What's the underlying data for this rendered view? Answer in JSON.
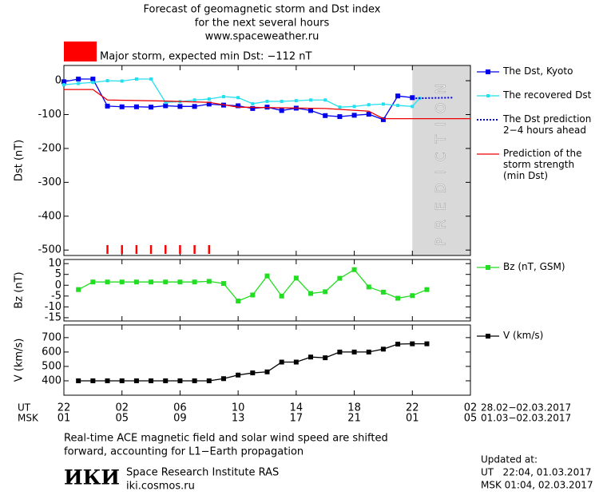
{
  "title_lines": [
    "Forecast of geomagnetic storm and Dst index",
    "for the next several hours",
    "www.spaceweather.ru"
  ],
  "alert": "Major storm, expected min Dst: −112 nT",
  "x_axis": {
    "xlim": [
      0,
      28
    ],
    "xticks": [
      {
        "value": 0,
        "label": "22"
      },
      {
        "value": 4,
        "label": "02"
      },
      {
        "value": 8,
        "label": "06"
      },
      {
        "value": 12,
        "label": "10"
      },
      {
        "value": 16,
        "label": "14"
      },
      {
        "value": 20,
        "label": "18"
      },
      {
        "value": 24,
        "label": "22"
      },
      {
        "value": 28,
        "label": "02"
      }
    ],
    "msk_labels": [
      "01",
      "05",
      "09",
      "13",
      "17",
      "21",
      "01",
      "05"
    ],
    "ut_label": "UT",
    "msk_label": "MSK",
    "ut_dates": "28.02−02.03.2017",
    "msk_dates": "01.03−02.03.2017"
  },
  "chart_data": [
    {
      "type": "line",
      "ylabel": "Dst (nT)",
      "ylim": [
        -516,
        45
      ],
      "yticks": [
        0,
        -100,
        -200,
        -300,
        -400,
        -500
      ],
      "prediction_region": {
        "x": [
          24,
          28
        ],
        "label": "PREDICTION",
        "color": "#d9d9d9"
      },
      "alert_hours": [
        3,
        4,
        5,
        6,
        7,
        8,
        9,
        10
      ],
      "alert_color": "#ff0000",
      "series": [
        {
          "name": "The Dst, Kyoto",
          "color": "#0000ee",
          "marker": "square",
          "x": [
            0,
            1,
            2,
            3,
            4,
            5,
            6,
            7,
            8,
            9,
            10,
            11,
            12,
            13,
            14,
            15,
            16,
            17,
            18,
            19,
            20,
            21,
            22,
            23,
            24
          ],
          "values": [
            -3,
            5,
            5,
            -75,
            -77,
            -77,
            -78,
            -74,
            -76,
            -76,
            -69,
            -72,
            -74,
            -82,
            -78,
            -88,
            -81,
            -88,
            -103,
            -106,
            -102,
            -99,
            -115,
            -45,
            -50
          ]
        },
        {
          "name": "The recovered Dst",
          "color": "#22e0f0",
          "marker": "small-square",
          "x": [
            0,
            1,
            2,
            3,
            4,
            5,
            6,
            7,
            8,
            9,
            10,
            11,
            12,
            13,
            14,
            15,
            16,
            17,
            18,
            19,
            20,
            21,
            22,
            23,
            24,
            24.5
          ],
          "values": [
            -12,
            -8,
            -5,
            0,
            -1,
            5,
            5,
            -64,
            -62,
            -57,
            -54,
            -47,
            -50,
            -68,
            -61,
            -61,
            -59,
            -57,
            -57,
            -78,
            -76,
            -71,
            -69,
            -73,
            -76,
            -52
          ]
        },
        {
          "name": "The Dst prediction\n2−4 hours ahead",
          "color": "#0000ee",
          "dash": true,
          "x": [
            24,
            26.75
          ],
          "values": [
            -52,
            -50
          ]
        },
        {
          "name": "Prediction of the\nstorm strength\n(min Dst)",
          "color": "#ee0000",
          "x": [
            0,
            2,
            3,
            7,
            10,
            12,
            18,
            21,
            22,
            28
          ],
          "values": [
            -26,
            -26,
            -57,
            -60,
            -64,
            -78,
            -82,
            -90,
            -112,
            -112
          ]
        }
      ]
    },
    {
      "type": "line",
      "ylabel": "Bz (nT)",
      "ylim": [
        -16.5,
        11.9
      ],
      "yticks": [
        10,
        5,
        0,
        -5,
        -10,
        -15
      ],
      "series": [
        {
          "name": "Bz (nT, GSM)",
          "color": "#22dd22",
          "marker": "square",
          "x": [
            1,
            2,
            3,
            4,
            5,
            6,
            7,
            8,
            9,
            10,
            11,
            12,
            13,
            14,
            15,
            16,
            17,
            18,
            19,
            20,
            21,
            22,
            23,
            24,
            25
          ],
          "values": [
            -2,
            1.5,
            1.5,
            1.5,
            1.5,
            1.5,
            1.5,
            1.5,
            1.5,
            1.8,
            0.8,
            -7.3,
            -4.5,
            4.3,
            -5,
            3.3,
            -3.8,
            -3,
            3.2,
            7.2,
            -0.8,
            -3.2,
            -6,
            -4.8,
            -2
          ]
        }
      ]
    },
    {
      "type": "line",
      "ylabel": "V (km/s)",
      "ylim": [
        300,
        788
      ],
      "yticks": [
        400,
        500,
        600,
        700
      ],
      "series": [
        {
          "name": "V (km/s)",
          "color": "#000000",
          "marker": "square",
          "x": [
            1,
            2,
            3,
            4,
            5,
            6,
            7,
            8,
            9,
            10,
            11,
            12,
            13,
            14,
            15,
            16,
            17,
            18,
            19,
            20,
            21,
            22,
            23,
            24,
            25
          ],
          "values": [
            400,
            400,
            400,
            400,
            400,
            400,
            400,
            400,
            400,
            400,
            415,
            440,
            455,
            462,
            530,
            530,
            565,
            560,
            600,
            600,
            600,
            620,
            655,
            657,
            657
          ]
        }
      ]
    }
  ],
  "note_lines": [
    "Real-time ACE magnetic field and solar wind speed are shifted",
    "forward, accounting for L1−Earth propagation"
  ],
  "institute": {
    "logo": "ИКИ",
    "name": "Space Research Institute RAS",
    "url": "iki.cosmos.ru"
  },
  "updated": {
    "heading": "Updated at:",
    "ut": "UT   22:04, 01.03.2017",
    "msk": "MSK 01:04, 02.03.2017"
  }
}
